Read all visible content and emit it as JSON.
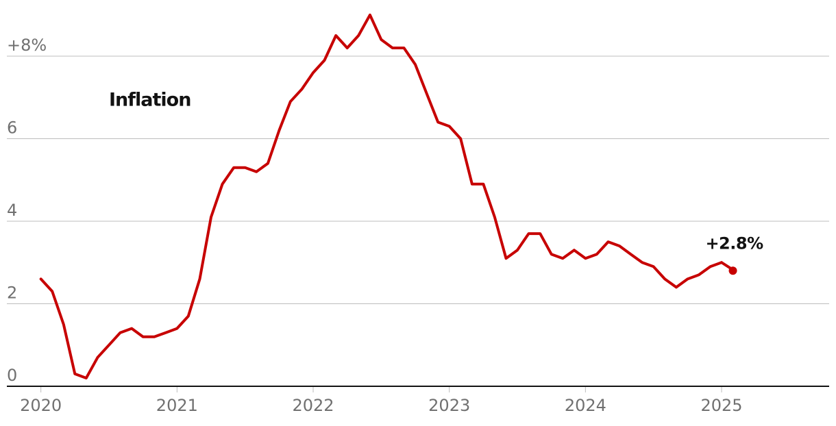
{
  "chart_data": {
    "type": "line",
    "title": "",
    "xlabel": "",
    "ylabel": "",
    "ylim": [
      0,
      9
    ],
    "xlim": [
      2019.75,
      2025.79
    ],
    "y_ticks": [
      {
        "value": 8,
        "label": "+8%"
      },
      {
        "value": 6,
        "label": "6"
      },
      {
        "value": 4,
        "label": "4"
      },
      {
        "value": 2,
        "label": "2"
      },
      {
        "value": 0,
        "label": "0"
      }
    ],
    "x_ticks": [
      {
        "value": 2020,
        "label": "2020"
      },
      {
        "value": 2021,
        "label": "2021"
      },
      {
        "value": 2022,
        "label": "2022"
      },
      {
        "value": 2023,
        "label": "2023"
      },
      {
        "value": 2024,
        "label": "2024"
      },
      {
        "value": 2025,
        "label": "2025"
      }
    ],
    "grid": true,
    "series": [
      {
        "name": "Inflation",
        "color": "#c70000",
        "x": [
          2020.0,
          2020.083,
          2020.167,
          2020.25,
          2020.333,
          2020.417,
          2020.5,
          2020.583,
          2020.667,
          2020.75,
          2020.833,
          2020.917,
          2021.0,
          2021.083,
          2021.167,
          2021.25,
          2021.333,
          2021.417,
          2021.5,
          2021.583,
          2021.667,
          2021.75,
          2021.833,
          2021.917,
          2022.0,
          2022.083,
          2022.167,
          2022.25,
          2022.333,
          2022.417,
          2022.5,
          2022.583,
          2022.667,
          2022.75,
          2022.833,
          2022.917,
          2023.0,
          2023.083,
          2023.167,
          2023.25,
          2023.333,
          2023.417,
          2023.5,
          2023.583,
          2023.667,
          2023.75,
          2023.833,
          2023.917,
          2024.0,
          2024.083,
          2024.167,
          2024.25,
          2024.333,
          2024.417,
          2024.5,
          2024.583,
          2024.667,
          2024.75,
          2024.833,
          2024.917,
          2025.0
        ],
        "values": [
          2.6,
          2.3,
          1.5,
          0.3,
          0.2,
          0.7,
          1.0,
          1.3,
          1.4,
          1.2,
          1.2,
          1.3,
          1.4,
          1.7,
          2.6,
          4.1,
          4.9,
          5.3,
          5.3,
          5.2,
          5.4,
          6.2,
          6.9,
          7.2,
          7.6,
          7.9,
          8.5,
          8.2,
          8.5,
          9.0,
          8.4,
          8.2,
          8.2,
          7.8,
          7.1,
          6.4,
          6.3,
          6.0,
          4.9,
          4.9,
          4.1,
          3.1,
          3.3,
          3.7,
          3.7,
          3.2,
          3.1,
          3.3,
          3.1,
          3.2,
          3.5,
          3.4,
          3.2,
          3.0,
          2.9,
          2.6,
          2.4,
          2.6,
          2.7,
          2.9,
          3.0
        ]
      }
    ],
    "end_point": {
      "x": 2025.083,
      "value": 2.8,
      "label": "+2.8%"
    },
    "annotations": [
      {
        "text": "Inflation",
        "x": 2020.5,
        "y": 6.9
      }
    ]
  }
}
